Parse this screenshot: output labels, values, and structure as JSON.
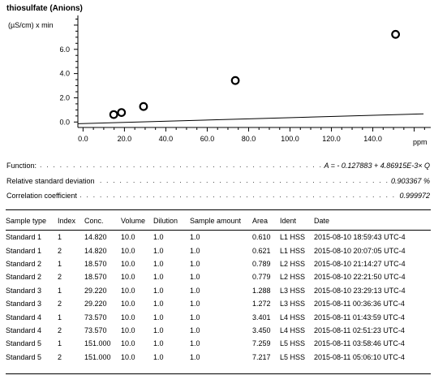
{
  "chart_data": {
    "type": "scatter",
    "title": "thiosulfate (Anions)",
    "ylabel": "(µS/cm) x min",
    "xlabel": "ppm",
    "xlim": [
      -2.5,
      168
    ],
    "ylim": [
      -0.45,
      8.8
    ],
    "x_ticks": [
      "0.0",
      "20.0",
      "40.0",
      "60.0",
      "80.0",
      "100.0",
      "120.0",
      "140.0"
    ],
    "x_tick_values": [
      0,
      20,
      40,
      60,
      80,
      100,
      120,
      140
    ],
    "y_ticks": [
      "0.0",
      "2.0",
      "4.0",
      "6.0"
    ],
    "y_tick_values": [
      0,
      2,
      4,
      6
    ],
    "points": [
      {
        "x": 14.82,
        "y": 0.6155
      },
      {
        "x": 18.57,
        "y": 0.784
      },
      {
        "x": 29.22,
        "y": 1.2795
      },
      {
        "x": 73.57,
        "y": 3.4255
      },
      {
        "x": 151.0,
        "y": 7.238
      }
    ],
    "fit": {
      "intercept": -0.127883,
      "slope": 0.00486915,
      "x_range": [
        -2.5,
        168
      ]
    },
    "colors": {
      "line": "#000000",
      "marker": "#000000",
      "axis": "#000000"
    }
  },
  "stats": [
    {
      "label": "Function:",
      "value": "A = - 0.127883 + 4.86915E-3× Q"
    },
    {
      "label": "Relative standard deviation",
      "value": "0.903367 %"
    },
    {
      "label": "Correlation coefficient",
      "value": "0.999972"
    }
  ],
  "table": {
    "columns": [
      "Sample type",
      "Index",
      "Conc.",
      "Volume",
      "Dilution",
      "Sample amount",
      "Area",
      "Ident",
      "Date"
    ],
    "rows": [
      [
        "Standard 1",
        "1",
        "14.820",
        "10.0",
        "1.0",
        "1.0",
        "0.610",
        "L1 HSS",
        "2015-08-10 18:59:43 UTC-4"
      ],
      [
        "Standard 1",
        "2",
        "14.820",
        "10.0",
        "1.0",
        "1.0",
        "0.621",
        "L1 HSS",
        "2015-08-10 20:07:05 UTC-4"
      ],
      [
        "Standard 2",
        "1",
        "18.570",
        "10.0",
        "1.0",
        "1.0",
        "0.789",
        "L2 HSS",
        "2015-08-10 21:14:27 UTC-4"
      ],
      [
        "Standard 2",
        "2",
        "18.570",
        "10.0",
        "1.0",
        "1.0",
        "0.779",
        "L2 HSS",
        "2015-08-10 22:21:50 UTC-4"
      ],
      [
        "Standard 3",
        "1",
        "29.220",
        "10.0",
        "1.0",
        "1.0",
        "1.288",
        "L3 HSS",
        "2015-08-10 23:29:13 UTC-4"
      ],
      [
        "Standard 3",
        "2",
        "29.220",
        "10.0",
        "1.0",
        "1.0",
        "1.272",
        "L3 HSS",
        "2015-08-11 00:36:36 UTC-4"
      ],
      [
        "Standard 4",
        "1",
        "73.570",
        "10.0",
        "1.0",
        "1.0",
        "3.401",
        "L4 HSS",
        "2015-08-11 01:43:59 UTC-4"
      ],
      [
        "Standard 4",
        "2",
        "73.570",
        "10.0",
        "1.0",
        "1.0",
        "3.450",
        "L4 HSS",
        "2015-08-11 02:51:23 UTC-4"
      ],
      [
        "Standard 5",
        "1",
        "151.000",
        "10.0",
        "1.0",
        "1.0",
        "7.259",
        "L5 HSS",
        "2015-08-11 03:58:46 UTC-4"
      ],
      [
        "Standard 5",
        "2",
        "151.000",
        "10.0",
        "1.0",
        "1.0",
        "7.217",
        "L5 HSS",
        "2015-08-11 05:06:10 UTC-4"
      ]
    ]
  }
}
